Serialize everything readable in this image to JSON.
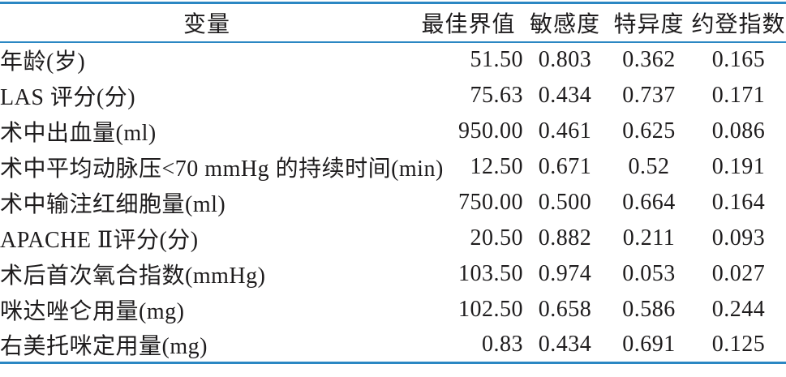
{
  "colors": {
    "rule_blue": "#2b87c3",
    "text": "#1e1c1d",
    "background": "#ffffff"
  },
  "table": {
    "columns": [
      {
        "key": "variable",
        "label": "变量"
      },
      {
        "key": "cutoff",
        "label": "最佳界值"
      },
      {
        "key": "sensitivity",
        "label": "敏感度"
      },
      {
        "key": "specificity",
        "label": "特异度"
      },
      {
        "key": "youden",
        "label": "约登指数"
      }
    ],
    "rows": [
      {
        "variable": "年龄(岁)",
        "cutoff": "51.50",
        "sensitivity": "0.803",
        "specificity": "0.362",
        "youden": "0.165"
      },
      {
        "variable": "LAS 评分(分)",
        "cutoff": "75.63",
        "sensitivity": "0.434",
        "specificity": "0.737",
        "youden": "0.171"
      },
      {
        "variable": "术中出血量(ml)",
        "cutoff": "950.00",
        "sensitivity": "0.461",
        "specificity": "0.625",
        "youden": "0.086"
      },
      {
        "variable": "术中平均动脉压<70 mmHg 的持续时间(min)",
        "cutoff": "12.50",
        "sensitivity": "0.671",
        "specificity": "0.52",
        "youden": "0.191"
      },
      {
        "variable": "术中输注红细胞量(ml)",
        "cutoff": "750.00",
        "sensitivity": "0.500",
        "specificity": "0.664",
        "youden": "0.164"
      },
      {
        "variable": "APACHE Ⅱ评分(分)",
        "cutoff": "20.50",
        "sensitivity": "0.882",
        "specificity": "0.211",
        "youden": "0.093"
      },
      {
        "variable": "术后首次氧合指数(mmHg)",
        "cutoff": "103.50",
        "sensitivity": "0.974",
        "specificity": "0.053",
        "youden": "0.027"
      },
      {
        "variable": "咪达唑仑用量(mg)",
        "cutoff": "102.50",
        "sensitivity": "0.658",
        "specificity": "0.586",
        "youden": "0.244"
      },
      {
        "variable": "右美托咪定用量(mg)",
        "cutoff": "0.83",
        "sensitivity": "0.434",
        "specificity": "0.691",
        "youden": "0.125"
      }
    ]
  },
  "chart_data": {
    "type": "table",
    "columns": [
      "变量",
      "最佳界值",
      "敏感度",
      "特异度",
      "约登指数"
    ],
    "rows": [
      [
        "年龄(岁)",
        51.5,
        0.803,
        0.362,
        0.165
      ],
      [
        "LAS 评分(分)",
        75.63,
        0.434,
        0.737,
        0.171
      ],
      [
        "术中出血量(ml)",
        950.0,
        0.461,
        0.625,
        0.086
      ],
      [
        "术中平均动脉压<70 mmHg 的持续时间(min)",
        12.5,
        0.671,
        0.52,
        0.191
      ],
      [
        "术中输注红细胞量(ml)",
        750.0,
        0.5,
        0.664,
        0.164
      ],
      [
        "APACHE Ⅱ评分(分)",
        20.5,
        0.882,
        0.211,
        0.093
      ],
      [
        "术后首次氧合指数(mmHg)",
        103.5,
        0.974,
        0.053,
        0.027
      ],
      [
        "咪达唑仑用量(mg)",
        102.5,
        0.658,
        0.586,
        0.244
      ],
      [
        "右美托咪定用量(mg)",
        0.83,
        0.434,
        0.691,
        0.125
      ]
    ]
  }
}
